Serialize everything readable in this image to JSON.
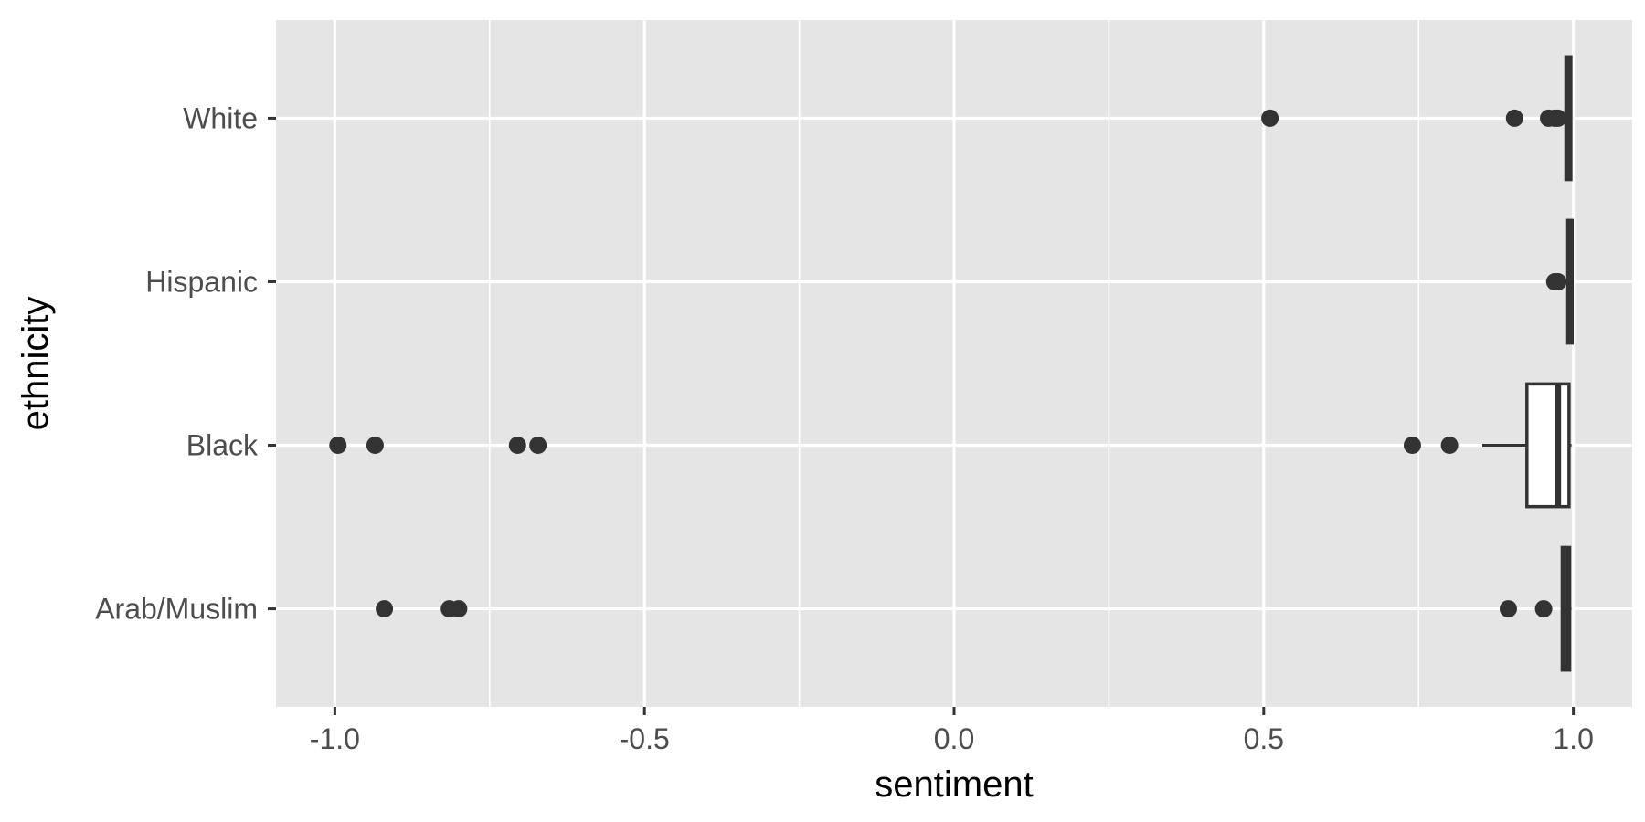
{
  "chart_data": {
    "type": "boxplot",
    "orientation": "horizontal",
    "title": "",
    "xlabel": "sentiment",
    "ylabel": "ethnicity",
    "xlim": [
      -1.095,
      1.095
    ],
    "x_ticks": [
      -1.0,
      -0.5,
      0.0,
      0.5,
      1.0
    ],
    "x_tick_labels": [
      "-1.0",
      "-0.5",
      "0.0",
      "0.5",
      "1.0"
    ],
    "x_minor_ticks": [
      -0.75,
      -0.25,
      0.25,
      0.75
    ],
    "categories": [
      "White",
      "Hispanic",
      "Black",
      "Arab/Muslim"
    ],
    "grid": true,
    "legend": "none",
    "colors": {
      "panel_background": "#e5e5e5",
      "grid": "#ffffff",
      "box_fill": "#ffffff",
      "box_line": "#333333",
      "outlier": "#333333",
      "tick_text": "#4d4d4d",
      "axis_title": "#000000"
    },
    "boxes": [
      {
        "category": "White",
        "whisker_low": 0.988,
        "q1": 0.988,
        "median": 0.992,
        "q3": 0.996,
        "whisker_high": 0.997,
        "outliers": [
          0.51,
          0.905,
          0.96,
          0.97,
          0.975
        ]
      },
      {
        "category": "Hispanic",
        "whisker_low": 0.991,
        "q1": 0.991,
        "median": 0.994,
        "q3": 0.998,
        "whisker_high": 0.998,
        "outliers": [
          0.97,
          0.975
        ]
      },
      {
        "category": "Black",
        "whisker_low": 0.853,
        "q1": 0.925,
        "median": 0.975,
        "q3": 0.993,
        "whisker_high": 0.997,
        "outliers": [
          -0.995,
          -0.935,
          -0.705,
          -0.672,
          0.74,
          0.8
        ]
      },
      {
        "category": "Arab/Muslim",
        "whisker_low": 0.982,
        "q1": 0.982,
        "median": 0.988,
        "q3": 0.994,
        "whisker_high": 0.997,
        "outliers": [
          -0.92,
          -0.815,
          -0.8,
          0.895,
          0.952
        ]
      }
    ]
  }
}
